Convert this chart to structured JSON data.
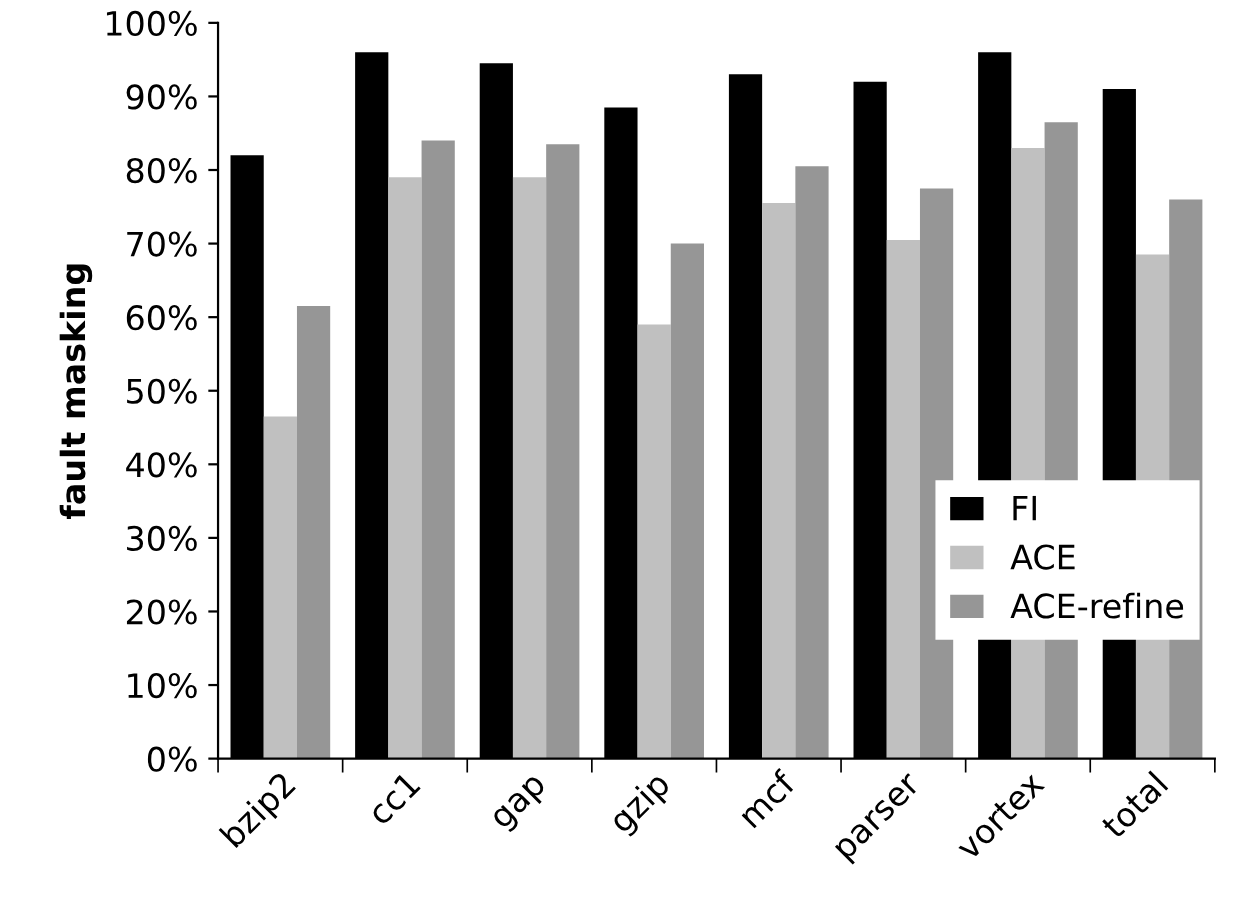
{
  "chart_data": {
    "type": "bar",
    "ylabel": "fault masking",
    "categories": [
      "bzip2",
      "cc1",
      "gap",
      "gzip",
      "mcf",
      "parser",
      "vortex",
      "total"
    ],
    "series": [
      {
        "name": "FI",
        "color": "#000000",
        "values": [
          82,
          96,
          94.5,
          88.5,
          93,
          92,
          96,
          91
        ]
      },
      {
        "name": "ACE",
        "color": "#c0c0c0",
        "values": [
          46.5,
          79,
          79,
          59,
          75.5,
          70.5,
          83,
          68.5
        ]
      },
      {
        "name": "ACE-refine",
        "color": "#969696",
        "values": [
          61.5,
          84,
          83.5,
          70,
          80.5,
          77.5,
          86.5,
          76
        ]
      }
    ],
    "ylim": [
      0,
      100
    ],
    "yticks": [
      {
        "value": 0,
        "label": "0%"
      },
      {
        "value": 10,
        "label": "10%"
      },
      {
        "value": 20,
        "label": "20%"
      },
      {
        "value": 30,
        "label": "30%"
      },
      {
        "value": 40,
        "label": "40%"
      },
      {
        "value": 50,
        "label": "50%"
      },
      {
        "value": 60,
        "label": "60%"
      },
      {
        "value": 70,
        "label": "70%"
      },
      {
        "value": 80,
        "label": "80%"
      },
      {
        "value": 90,
        "label": "90%"
      },
      {
        "value": 100,
        "label": "100%"
      }
    ],
    "grid": false,
    "legend": "center right"
  }
}
